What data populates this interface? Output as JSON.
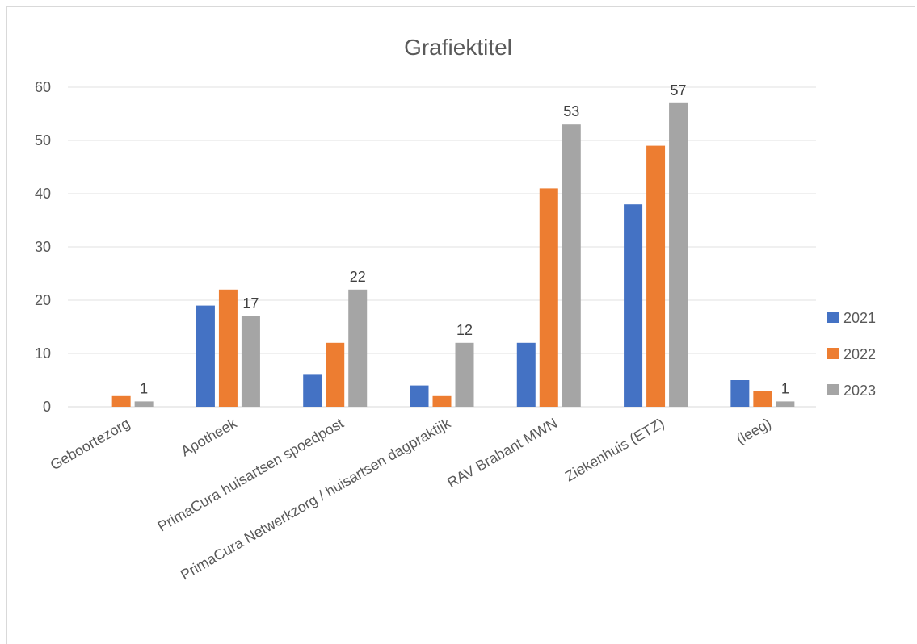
{
  "chart_data": {
    "type": "bar",
    "title": "Grafiektitel",
    "categories": [
      "Geboortezorg",
      "Apotheek",
      "PrimaCura huisartsen spoedpost",
      "PrimaCura Netwerkzorg / huisartsen dagpraktijk",
      "RAV Brabant MWN",
      "Ziekenhuis (ETZ)",
      "(leeg)"
    ],
    "series": [
      {
        "name": "2021",
        "color": "#4472c4",
        "values": [
          null,
          19,
          6,
          4,
          12,
          38,
          5
        ]
      },
      {
        "name": "2022",
        "color": "#ed7d31",
        "values": [
          2,
          22,
          12,
          2,
          41,
          49,
          3
        ]
      },
      {
        "name": "2023",
        "color": "#a5a5a5",
        "values": [
          1,
          17,
          22,
          12,
          53,
          57,
          1
        ]
      }
    ],
    "data_labels": {
      "series": "2023",
      "values": [
        1,
        17,
        22,
        12,
        53,
        57,
        1
      ]
    },
    "y_ticks": [
      "0",
      "10",
      "20",
      "30",
      "40",
      "50",
      "60"
    ],
    "ylim": [
      0,
      60
    ],
    "xlabel": "",
    "ylabel": "",
    "grid": true,
    "legend_position": "right"
  }
}
